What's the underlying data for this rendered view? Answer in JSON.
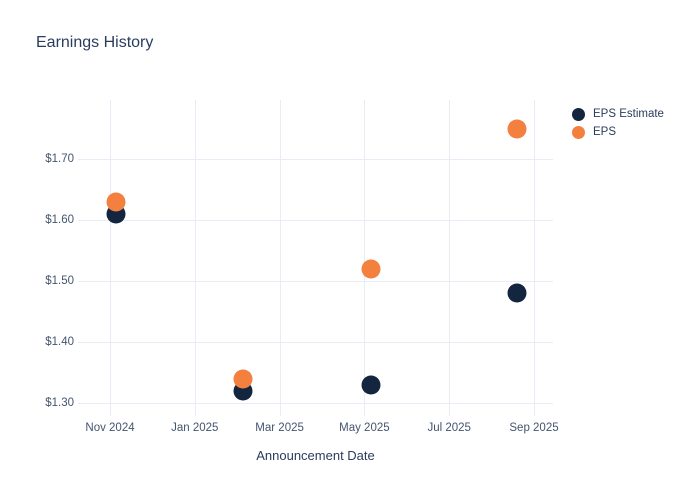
{
  "title": "Earnings History",
  "colors": {
    "background": "#ffffff",
    "grid": "#e9ecf4",
    "heading_text": "#2b3d5c",
    "tick_text": "#45556f",
    "eps_estimate": "#14263f",
    "eps": "#f3803e"
  },
  "legend": {
    "items": [
      {
        "label": "EPS Estimate",
        "color": "#14263f"
      },
      {
        "label": "EPS",
        "color": "#f3803e"
      }
    ]
  },
  "chart_data": {
    "type": "scatter",
    "title": "Earnings History",
    "xlabel": "Announcement Date",
    "ylabel": "",
    "grid": true,
    "legend_position": "outside-top-right",
    "x_axis": {
      "unit": "months since Nov 2024",
      "tick_positions": [
        0,
        2,
        4,
        6,
        8,
        10
      ],
      "tick_labels": [
        "Nov 2024",
        "Jan 2025",
        "Mar 2025",
        "May 2025",
        "Jul 2025",
        "Sep 2025"
      ],
      "range": [
        -0.78,
        10.45
      ]
    },
    "y_axis": {
      "tick_values": [
        1.3,
        1.4,
        1.5,
        1.6,
        1.7
      ],
      "tick_labels": [
        "$1.30",
        "$1.40",
        "$1.50",
        "$1.60",
        "$1.70"
      ],
      "range": [
        1.28,
        1.8
      ]
    },
    "series": [
      {
        "name": "EPS Estimate",
        "color": "#14263f",
        "points": [
          {
            "x": 0.14,
            "y": 1.61
          },
          {
            "x": 3.14,
            "y": 1.32
          },
          {
            "x": 6.16,
            "y": 1.33
          },
          {
            "x": 9.6,
            "y": 1.48
          }
        ]
      },
      {
        "name": "EPS",
        "color": "#f3803e",
        "points": [
          {
            "x": 0.14,
            "y": 1.63
          },
          {
            "x": 3.14,
            "y": 1.34
          },
          {
            "x": 6.16,
            "y": 1.52
          },
          {
            "x": 9.6,
            "y": 1.75
          }
        ]
      }
    ]
  }
}
